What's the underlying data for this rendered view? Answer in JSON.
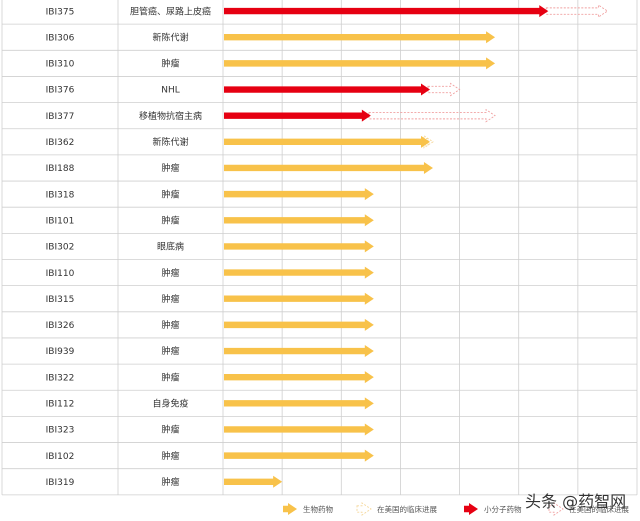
{
  "chart_data": {
    "type": "bar",
    "columns": 7,
    "colors": {
      "biologic": "#f8c24a",
      "small_molecule": "#e60012",
      "us_outline": "#f0a0a0",
      "us_outline_bio": "#f5d79a",
      "grid": "#cfcfcf"
    },
    "rows": [
      {
        "code": "IBI375",
        "indication": "胆管癌、尿路上皮癌",
        "kind": "small_molecule",
        "value": 5.5,
        "us_value": 6.5
      },
      {
        "code": "IBI306",
        "indication": "新陈代谢",
        "kind": "biologic",
        "value": 4.6,
        "us_value": null
      },
      {
        "code": "IBI310",
        "indication": "肿瘤",
        "kind": "biologic",
        "value": 4.6,
        "us_value": null
      },
      {
        "code": "IBI376",
        "indication": "NHL",
        "kind": "small_molecule",
        "value": 3.5,
        "us_value": 4.0
      },
      {
        "code": "IBI377",
        "indication": "移植物抗宿主病",
        "kind": "small_molecule",
        "value": 2.5,
        "us_value": 4.6
      },
      {
        "code": "IBI362",
        "indication": "新陈代谢",
        "kind": "biologic",
        "value": 3.5,
        "us_value": 3.55
      },
      {
        "code": "IBI188",
        "indication": "肿瘤",
        "kind": "biologic",
        "value": 3.55,
        "us_value": null
      },
      {
        "code": "IBI318",
        "indication": "肿瘤",
        "kind": "biologic",
        "value": 2.55,
        "us_value": null
      },
      {
        "code": "IBI101",
        "indication": "肿瘤",
        "kind": "biologic",
        "value": 2.55,
        "us_value": null
      },
      {
        "code": "IBI302",
        "indication": "眼底病",
        "kind": "biologic",
        "value": 2.55,
        "us_value": null
      },
      {
        "code": "IBI110",
        "indication": "肿瘤",
        "kind": "biologic",
        "value": 2.55,
        "us_value": null
      },
      {
        "code": "IBI315",
        "indication": "肿瘤",
        "kind": "biologic",
        "value": 2.55,
        "us_value": null
      },
      {
        "code": "IBI326",
        "indication": "肿瘤",
        "kind": "biologic",
        "value": 2.55,
        "us_value": null
      },
      {
        "code": "IBI939",
        "indication": "肿瘤",
        "kind": "biologic",
        "value": 2.55,
        "us_value": null
      },
      {
        "code": "IBI322",
        "indication": "肿瘤",
        "kind": "biologic",
        "value": 2.55,
        "us_value": null
      },
      {
        "code": "IBI112",
        "indication": "自身免疫",
        "kind": "biologic",
        "value": 2.55,
        "us_value": null
      },
      {
        "code": "IBI323",
        "indication": "肿瘤",
        "kind": "biologic",
        "value": 2.55,
        "us_value": null
      },
      {
        "code": "IBI102",
        "indication": "肿瘤",
        "kind": "biologic",
        "value": 2.55,
        "us_value": null
      },
      {
        "code": "IBI319",
        "indication": "肿瘤",
        "kind": "biologic",
        "value": 1.0,
        "us_value": null
      }
    ],
    "legend": [
      {
        "label": "生物药物",
        "style": "biologic"
      },
      {
        "label": "在美国的临床进展",
        "style": "us_bio"
      },
      {
        "label": "小分子药物",
        "style": "small_molecule"
      },
      {
        "label": "在美国的临床进展",
        "style": "us_small"
      }
    ]
  },
  "watermark": "头条 @药智网"
}
